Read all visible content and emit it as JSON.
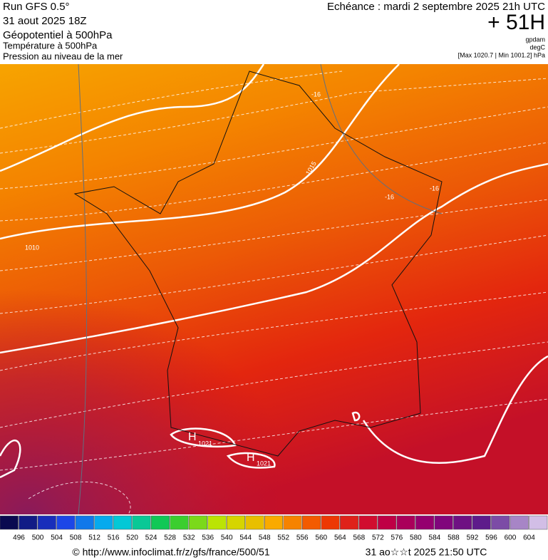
{
  "header": {
    "run": "Run GFS 0.5°",
    "date": "31 aout 2025 18Z",
    "fields": [
      "Géopotentiel à 500hPa",
      "Température à 500hPa",
      "Pression au niveau de la mer"
    ],
    "valid": "Echéance : mardi 2 septembre 2025 21h UTC",
    "lead": "+ 51H",
    "units": [
      "gpdam",
      "degC",
      "[Max 1020.7 | Min 1001.2] hPa"
    ]
  },
  "map": {
    "labels": [
      "-16",
      "1015",
      "-16",
      "-16",
      "1010"
    ],
    "highs": [
      {
        "mark": "H",
        "value": "1021"
      },
      {
        "mark": "H",
        "value": "1021"
      }
    ]
  },
  "scale": {
    "ticks": [
      496,
      500,
      504,
      508,
      512,
      516,
      520,
      524,
      528,
      532,
      536,
      540,
      544,
      548,
      552,
      556,
      560,
      564,
      568,
      572,
      576,
      580,
      584,
      588,
      592,
      596,
      600,
      604
    ]
  },
  "footer": {
    "url": "© http://www.infoclimat.fr/z/gfs/france/500/51",
    "timestamp": "31 ao☆☆t 2025 21:50 UTC"
  }
}
